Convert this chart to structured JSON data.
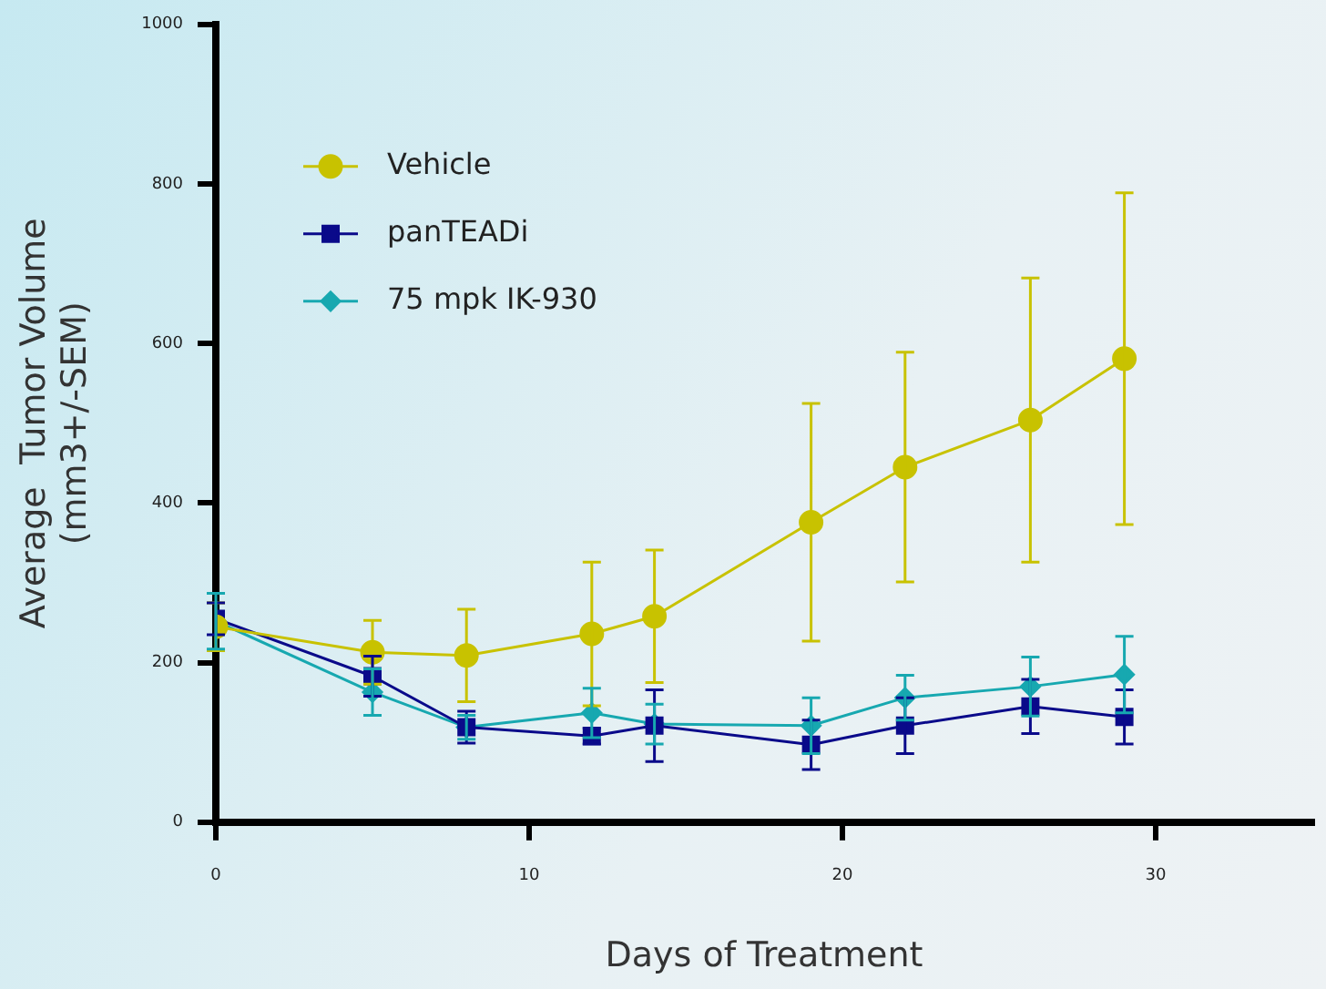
{
  "chart_data": {
    "type": "line",
    "xlabel": "Days of Treatment",
    "ylabel": "Average  Tumor Volume\n(mm3+/-SEM)",
    "x": [
      0,
      5,
      8,
      12,
      14,
      19,
      22,
      26,
      29
    ],
    "xlim": [
      0,
      35
    ],
    "xticks": [
      0,
      10,
      20,
      30
    ],
    "ylim": [
      0,
      1000
    ],
    "yticks": [
      0,
      200,
      400,
      600,
      800,
      1000
    ],
    "grid": false,
    "legend": "top left",
    "series": [
      {
        "name": "Vehicle",
        "color": "#c8c200",
        "marker": "circle",
        "values": [
          245,
          213,
          209,
          236,
          258,
          376,
          445,
          504,
          581
        ],
        "errors": [
          30,
          40,
          58,
          90,
          83,
          149,
          144,
          178,
          208
        ]
      },
      {
        "name": "panTEADi",
        "color": "#0a0a8a",
        "marker": "square",
        "values": [
          255,
          183,
          119,
          108,
          121,
          97,
          121,
          145,
          132
        ],
        "errors": [
          20,
          25,
          20,
          10,
          45,
          31,
          35,
          34,
          34
        ]
      },
      {
        "name": "75 mpk IK-930",
        "color": "#17a8b0",
        "marker": "diamond",
        "values": [
          252,
          163,
          119,
          137,
          123,
          121,
          156,
          170,
          185
        ],
        "errors": [
          35,
          29,
          15,
          31,
          25,
          35,
          28,
          37,
          48
        ]
      }
    ]
  }
}
